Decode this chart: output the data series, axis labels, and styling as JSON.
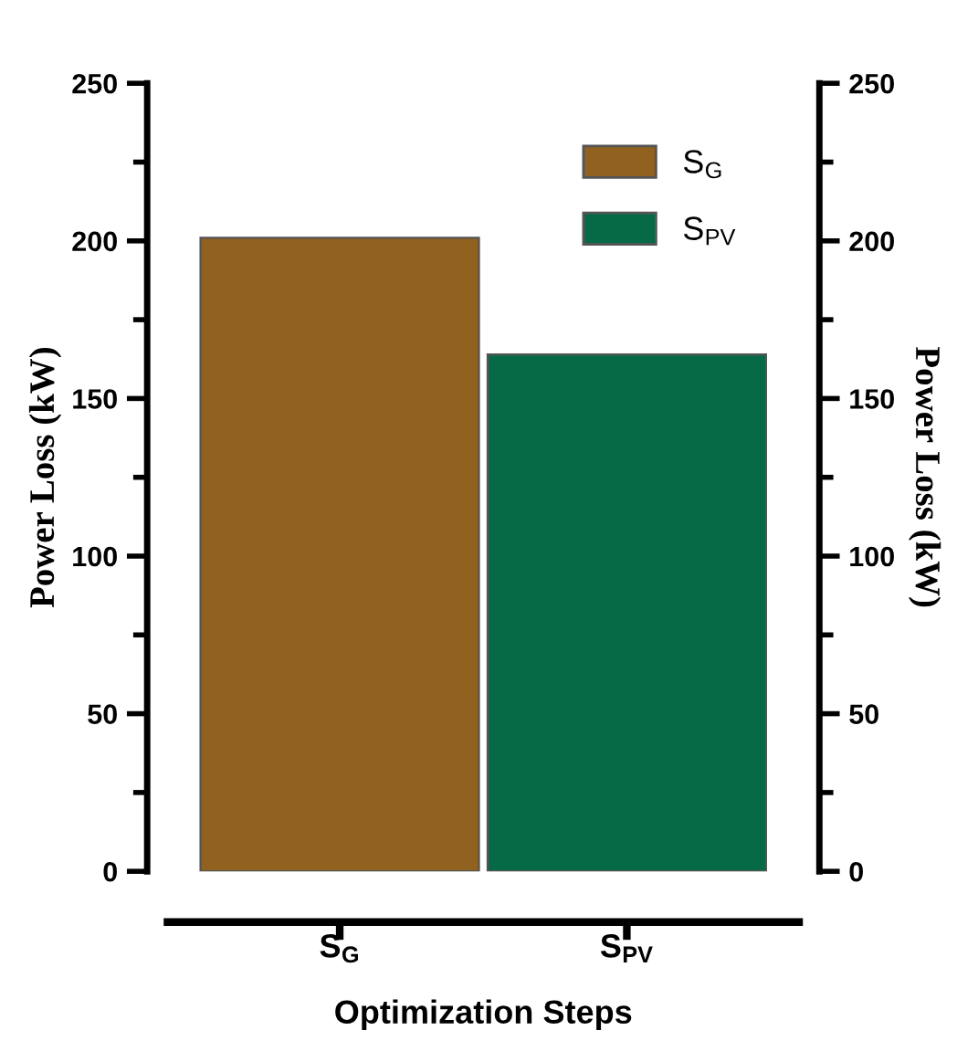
{
  "chart_data": {
    "type": "bar",
    "xlabel": "Optimization Steps",
    "ylabel": "Power Loss (kW)",
    "y2label": "Power Loss (kW)",
    "categories": [
      "S$_{G}$",
      "S$_{PV}$"
    ],
    "series": [
      {
        "name": "S$_{G}$",
        "color": "#916120",
        "values": [
          201,
          null
        ]
      },
      {
        "name": "S$_{PV}$",
        "color": "#076a46",
        "values": [
          null,
          164
        ]
      }
    ],
    "ylim": [
      0,
      250
    ],
    "yticks": [
      0,
      50,
      100,
      150,
      200,
      250
    ],
    "y2lim": [
      0,
      250
    ],
    "y2ticks": [
      0,
      50,
      100,
      150,
      200,
      250
    ],
    "legend": "top right",
    "grid": false
  }
}
